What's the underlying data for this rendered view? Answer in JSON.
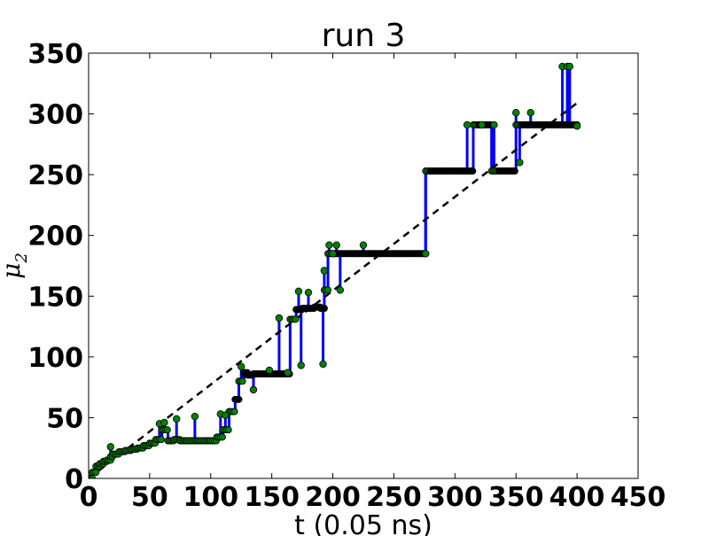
{
  "chart_data": {
    "type": "line",
    "title": "run 3",
    "xlabel": "t (0.05 ns)",
    "ylabel": "μ",
    "ylabel_subscript": "2",
    "xlim": [
      0,
      450
    ],
    "ylim": [
      0,
      350
    ],
    "xticks": [
      "0",
      "50",
      "100",
      "150",
      "200",
      "250",
      "300",
      "350",
      "400",
      "450"
    ],
    "yticks": [
      "0",
      "50",
      "100",
      "150",
      "200",
      "250",
      "300",
      "350"
    ],
    "grid": false,
    "legend": "none",
    "series": [
      {
        "style": "step-line-with-markers",
        "line_color": "#0000ff",
        "marker_colors": [
          "#008000",
          "#000000"
        ],
        "x": [
          0,
          3,
          6,
          9,
          12,
          15,
          18,
          20,
          25,
          30,
          35,
          40,
          45,
          50,
          55,
          60,
          65,
          70,
          75,
          80,
          90,
          100,
          105,
          110,
          115,
          120,
          123,
          127,
          130,
          135,
          140,
          150,
          160,
          165,
          170,
          175,
          180,
          185,
          190,
          193,
          196,
          200,
          210,
          220,
          230,
          240,
          250,
          260,
          270,
          276,
          280,
          290,
          300,
          310,
          315,
          320,
          330,
          340,
          350,
          355,
          360,
          370,
          380,
          387,
          390,
          395,
          400
        ],
        "y": [
          0,
          5,
          10,
          12,
          14,
          15,
          18,
          20,
          22,
          23,
          24,
          25,
          27,
          29,
          32,
          40,
          31,
          32,
          31,
          31,
          31,
          31,
          34,
          40,
          55,
          65,
          80,
          87,
          85,
          86,
          86,
          86,
          86,
          131,
          139,
          140,
          140,
          141,
          140,
          155,
          185,
          185,
          185,
          185,
          185,
          185,
          185,
          185,
          185,
          253,
          253,
          253,
          253,
          253,
          291,
          291,
          253,
          253,
          291,
          291,
          291,
          291,
          291,
          291,
          291,
          291,
          291
        ]
      },
      {
        "style": "excursion-markers",
        "marker_color": "#008000",
        "x": [
          18,
          58,
          62,
          72,
          87,
          108,
          112,
          125,
          135,
          148,
          156,
          163,
          172,
          174,
          180,
          192,
          193,
          197,
          200,
          203,
          206,
          225,
          276,
          310,
          322,
          332,
          350,
          353,
          362,
          388,
          392,
          394,
          400
        ],
        "y": [
          26,
          45,
          46,
          49,
          51,
          53,
          52,
          92,
          73,
          89,
          132,
          87,
          154,
          93,
          153,
          94,
          171,
          192,
          185,
          192,
          155,
          192,
          185,
          291,
          291,
          291,
          301,
          260,
          301,
          339,
          339,
          339,
          290
        ]
      },
      {
        "style": "dashed",
        "line_color": "#000000",
        "x": [
          0,
          400
        ],
        "y": [
          0,
          309
        ]
      }
    ]
  }
}
